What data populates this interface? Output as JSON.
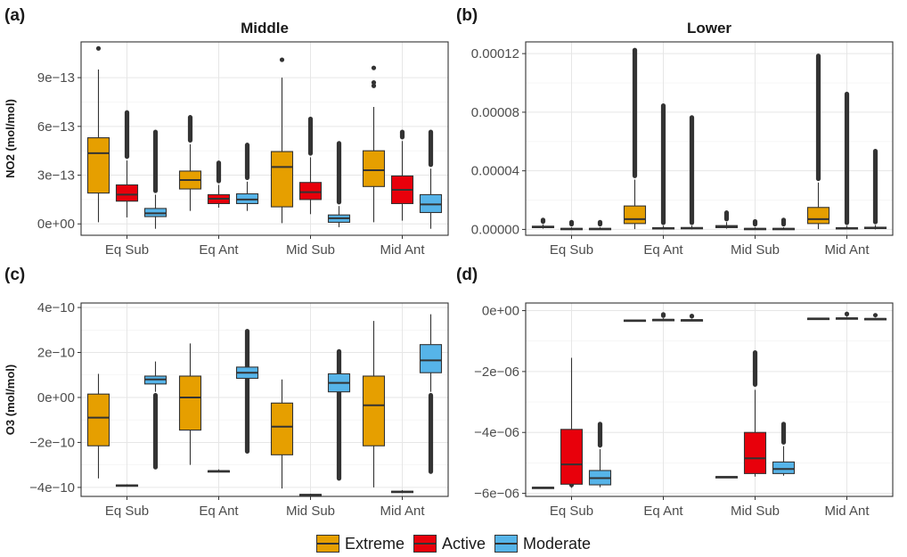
{
  "colors": {
    "Extreme": "#E69F00",
    "Active": "#E8000B",
    "Moderate": "#56B4E9"
  },
  "legend": {
    "items": [
      "Extreme",
      "Active",
      "Moderate"
    ]
  },
  "chart_data": [
    {
      "panel_label": "(a)",
      "title": "Middle",
      "ylabel": "NO2 (mol/mol)",
      "type": "box",
      "categories": [
        "Eq Sub",
        "Eq Ant",
        "Mid Sub",
        "Mid Ant"
      ],
      "ylim": [
        -7e-14,
        1.12e-12
      ],
      "yticks": [
        0,
        3e-13,
        6e-13,
        9e-13
      ],
      "ytick_labels": [
        "0e+00",
        "3e−13",
        "6e−13",
        "9e−13"
      ],
      "series": [
        {
          "name": "Extreme",
          "boxes": [
            {
              "min": 1e-14,
              "q1": 1.9e-13,
              "median": 4.35e-13,
              "q3": 5.3e-13,
              "max": 9.5e-13,
              "outliers": [
                1.08e-12
              ]
            },
            {
              "min": 8e-14,
              "q1": 2.15e-13,
              "median": 2.7e-13,
              "q3": 3.25e-13,
              "max": 4.9e-13,
              "outlier_range": [
                5e-13,
                6.7e-13
              ]
            },
            {
              "min": 5e-15,
              "q1": 1.05e-13,
              "median": 3.5e-13,
              "q3": 4.45e-13,
              "max": 9e-13,
              "outliers": [
                1.01e-12
              ]
            },
            {
              "min": 1e-14,
              "q1": 2.3e-13,
              "median": 3.3e-13,
              "q3": 4.5e-13,
              "max": 7.2e-13,
              "outliers": [
                8.5e-13,
                8.7e-13,
                9.6e-13
              ]
            }
          ]
        },
        {
          "name": "Active",
          "boxes": [
            {
              "min": 4e-14,
              "q1": 1.4e-13,
              "median": 1.8e-13,
              "q3": 2.4e-13,
              "max": 3.9e-13,
              "outlier_range": [
                4e-13,
                7e-13
              ]
            },
            {
              "min": 1e-13,
              "q1": 1.25e-13,
              "median": 1.55e-13,
              "q3": 1.8e-13,
              "max": 2.4e-13,
              "outlier_range": [
                2.5e-13,
                3.9e-13
              ]
            },
            {
              "min": 6e-14,
              "q1": 1.5e-13,
              "median": 1.95e-13,
              "q3": 2.55e-13,
              "max": 4.1e-13,
              "outlier_range": [
                4.2e-13,
                6.6e-13
              ]
            },
            {
              "min": 2e-14,
              "q1": 1.25e-13,
              "median": 2.1e-13,
              "q3": 2.95e-13,
              "max": 5.1e-13,
              "outlier_range": [
                5.2e-13,
                5.8e-13
              ]
            }
          ]
        },
        {
          "name": "Moderate",
          "boxes": [
            {
              "min": -3e-14,
              "q1": 4.5e-14,
              "median": 6.5e-14,
              "q3": 9.5e-14,
              "max": 1.8e-13,
              "outlier_range": [
                1.9e-13,
                5.8e-13
              ]
            },
            {
              "min": 8e-14,
              "q1": 1.25e-13,
              "median": 1.5e-13,
              "q3": 1.85e-13,
              "max": 2.6e-13,
              "outlier_range": [
                2.7e-13,
                5e-13
              ]
            },
            {
              "min": -2e-14,
              "q1": 1e-14,
              "median": 3.5e-14,
              "q3": 5.5e-14,
              "max": 1.1e-13,
              "outlier_range": [
                1.2e-13,
                5.1e-13
              ]
            },
            {
              "min": -3e-14,
              "q1": 7e-14,
              "median": 1.2e-13,
              "q3": 1.8e-13,
              "max": 3.4e-13,
              "outlier_range": [
                3.5e-13,
                5.8e-13
              ]
            }
          ]
        }
      ]
    },
    {
      "panel_label": "(b)",
      "title": "Lower",
      "ylabel": "",
      "type": "box",
      "categories": [
        "Eq Sub",
        "Eq Ant",
        "Mid Sub",
        "Mid Ant"
      ],
      "ylim": [
        -4e-06,
        0.000128
      ],
      "yticks": [
        0,
        4e-05,
        8e-05,
        0.00012
      ],
      "ytick_labels": [
        "0.00000",
        "0.00004",
        "0.00008",
        "0.00012"
      ],
      "series": [
        {
          "name": "Extreme",
          "boxes": [
            {
              "min": 5e-07,
              "q1": 1.2e-06,
              "median": 1.6e-06,
              "q3": 2.2e-06,
              "max": 3.5e-06,
              "outlier_range": [
                3.8e-06,
                8e-06
              ]
            },
            {
              "min": 2e-07,
              "q1": 4e-06,
              "median": 7e-06,
              "q3": 1.6e-05,
              "max": 3.4e-05,
              "outlier_range": [
                3.5e-05,
                0.000124
              ]
            },
            {
              "min": 5e-07,
              "q1": 1.2e-06,
              "median": 1.8e-06,
              "q3": 2.6e-06,
              "max": 5e-06,
              "outlier_range": [
                5.5e-06,
                1.3e-05
              ]
            },
            {
              "min": 2e-07,
              "q1": 4e-06,
              "median": 7e-06,
              "q3": 1.5e-05,
              "max": 3.2e-05,
              "outlier_range": [
                3.3e-05,
                0.00012
              ]
            }
          ]
        },
        {
          "name": "Active",
          "boxes": [
            {
              "min": 0.0,
              "q1": 2e-07,
              "median": 4e-07,
              "q3": 7e-07,
              "max": 1.5e-06,
              "outlier_range": [
                2e-06,
                6.5e-06
              ]
            },
            {
              "min": 0.0,
              "q1": 4e-07,
              "median": 7e-07,
              "q3": 1.2e-06,
              "max": 2.5e-06,
              "outlier_range": [
                3e-06,
                8.6e-05
              ]
            },
            {
              "min": 0.0,
              "q1": 2e-07,
              "median": 4e-07,
              "q3": 7e-07,
              "max": 1.5e-06,
              "outlier_range": [
                2e-06,
                7e-06
              ]
            },
            {
              "min": 0.0,
              "q1": 4e-07,
              "median": 7e-07,
              "q3": 1.2e-06,
              "max": 2.5e-06,
              "outlier_range": [
                3e-06,
                9.4e-05
              ]
            }
          ]
        },
        {
          "name": "Moderate",
          "boxes": [
            {
              "min": 0.0,
              "q1": 2e-07,
              "median": 4e-07,
              "q3": 7e-07,
              "max": 1.5e-06,
              "outlier_range": [
                2e-06,
                6.5e-06
              ]
            },
            {
              "min": 0.0,
              "q1": 5e-07,
              "median": 9e-07,
              "q3": 1.3e-06,
              "max": 2.6e-06,
              "outlier_range": [
                3e-06,
                7.8e-05
              ]
            },
            {
              "min": 0.0,
              "q1": 2e-07,
              "median": 4e-07,
              "q3": 7e-07,
              "max": 1.5e-06,
              "outlier_range": [
                2e-06,
                8e-06
              ]
            },
            {
              "min": 0.0,
              "q1": 6e-07,
              "median": 1e-06,
              "q3": 1.5e-06,
              "max": 3e-06,
              "outlier_range": [
                3.5e-06,
                5.5e-05
              ]
            }
          ]
        }
      ]
    },
    {
      "panel_label": "(c)",
      "title": "",
      "ylabel": "O3 (mol/mol)",
      "type": "box",
      "categories": [
        "Eq Sub",
        "Eq Ant",
        "Mid Sub",
        "Mid Ant"
      ],
      "ylim": [
        -4.4e-10,
        4.2e-10
      ],
      "yticks": [
        -4e-10,
        -2e-10,
        0,
        2e-10,
        4e-10
      ],
      "ytick_labels": [
        "−4e−10",
        "−2e−10",
        "0e+00",
        "2e−10",
        "4e−10"
      ],
      "series": [
        {
          "name": "Extreme",
          "boxes": [
            {
              "min": -3.6e-10,
              "q1": -2.15e-10,
              "median": -9e-11,
              "q3": 1.5e-11,
              "max": 1.05e-10
            },
            {
              "min": -3e-10,
              "q1": -1.45e-10,
              "median": 0.0,
              "q3": 9.5e-11,
              "max": 2.4e-10
            },
            {
              "min": -4.05e-10,
              "q1": -2.55e-10,
              "median": -1.3e-10,
              "q3": -2.5e-11,
              "max": 8e-11
            },
            {
              "min": -4e-10,
              "q1": -2.15e-10,
              "median": -3.5e-11,
              "q3": 9.5e-11,
              "max": 3.4e-10
            }
          ]
        },
        {
          "name": "Active",
          "boxes": [
            {
              "min": -3.97e-10,
              "q1": -3.93e-10,
              "median": -3.91e-10,
              "q3": -3.89e-10,
              "max": -3.86e-10
            },
            {
              "min": -3.3e-10,
              "q1": -3.28e-10,
              "median": -3.27e-10,
              "q3": -3.26e-10,
              "max": -3.2e-10
            },
            {
              "min": -4.38e-10,
              "q1": -4.35e-10,
              "median": -4.33e-10,
              "q3": -4.31e-10,
              "max": -4.28e-10
            },
            {
              "min": -4.25e-10,
              "q1": -4.21e-10,
              "median": -4.19e-10,
              "q3": -4.17e-10,
              "max": -4.12e-10
            }
          ]
        },
        {
          "name": "Moderate",
          "boxes": [
            {
              "min": 2.5e-11,
              "q1": 6e-11,
              "median": 8e-11,
              "q3": 9.5e-11,
              "max": 1.6e-10,
              "outlier_range": [
                -3.2e-10,
                2e-11
              ]
            },
            {
              "min": 6e-11,
              "q1": 8.5e-11,
              "median": 1.1e-10,
              "q3": 1.35e-10,
              "max": 1.8e-10,
              "outlier_range": [
                -2.5e-10,
                3.05e-10
              ]
            },
            {
              "min": 0.0,
              "q1": 2.5e-11,
              "median": 6.5e-11,
              "q3": 1.05e-10,
              "max": 1.6e-10,
              "outlier_range": [
                -3.7e-10,
                2.15e-10
              ]
            },
            {
              "min": 2.5e-11,
              "q1": 1.1e-10,
              "median": 1.65e-10,
              "q3": 2.35e-10,
              "max": 3.7e-10,
              "outlier_range": [
                -3.4e-10,
                2e-11
              ]
            }
          ]
        }
      ]
    },
    {
      "panel_label": "(d)",
      "title": "",
      "ylabel": "",
      "type": "box",
      "categories": [
        "Eq Sub",
        "Eq Ant",
        "Mid Sub",
        "Mid Ant"
      ],
      "ylim": [
        -6.1e-06,
        2.5e-07
      ],
      "yticks": [
        -6e-06,
        -4e-06,
        -2e-06,
        0
      ],
      "ytick_labels": [
        "−6e−06",
        "−4e−06",
        "−2e−06",
        "0e+00"
      ],
      "series": [
        {
          "name": "Extreme",
          "boxes": [
            {
              "min": -5.83e-06,
              "q1": -5.82e-06,
              "median": -5.81e-06,
              "q3": -5.8e-06,
              "max": -5.79e-06
            },
            {
              "min": -3.4e-07,
              "q1": -3.3e-07,
              "median": -3.2e-07,
              "q3": -3.1e-07,
              "max": -3e-07
            },
            {
              "min": -5.48e-06,
              "q1": -5.47e-06,
              "median": -5.46e-06,
              "q3": -5.45e-06,
              "max": -5.44e-06
            },
            {
              "min": -2.8e-07,
              "q1": -2.7e-07,
              "median": -2.6e-07,
              "q3": -2.5e-07,
              "max": -2.4e-07
            }
          ]
        },
        {
          "name": "Active",
          "boxes": [
            {
              "min": -5.82e-06,
              "q1": -5.7e-06,
              "median": -5.05e-06,
              "q3": -3.9e-06,
              "max": -1.55e-06,
              "outlier_range": [
                -5.8e-06,
                -5.15e-06
              ]
            },
            {
              "min": -3.3e-07,
              "q1": -3.1e-07,
              "median": -3e-07,
              "q3": -2.9e-07,
              "max": -2.5e-07,
              "outlier_range": [
                -2.4e-07,
                -5e-08
              ]
            },
            {
              "min": -5.45e-06,
              "q1": -5.35e-06,
              "median": -4.85e-06,
              "q3": -4e-06,
              "max": -2.6e-06,
              "outlier_range": [
                -2.5e-06,
                -1.3e-06
              ]
            },
            {
              "min": -2.7e-07,
              "q1": -2.6e-07,
              "median": -2.5e-07,
              "q3": -2.4e-07,
              "max": -2e-07,
              "outlier_range": [
                -1.9e-07,
                -3e-08
              ]
            }
          ]
        },
        {
          "name": "Moderate",
          "boxes": [
            {
              "min": -5.8e-06,
              "q1": -5.72e-06,
              "median": -5.5e-06,
              "q3": -5.25e-06,
              "max": -4.55e-06,
              "outlier_range": [
                -4.5e-06,
                -3.65e-06
              ]
            },
            {
              "min": -3.4e-07,
              "q1": -3.2e-07,
              "median": -3.1e-07,
              "q3": -3e-07,
              "max": -2.7e-07,
              "outlier_range": [
                -2.6e-07,
                -1e-07
              ]
            },
            {
              "min": -5.42e-06,
              "q1": -5.35e-06,
              "median": -5.2e-06,
              "q3": -4.97e-06,
              "max": -4.45e-06,
              "outlier_range": [
                -4.4e-06,
                -3.65e-06
              ]
            },
            {
              "min": -3e-07,
              "q1": -2.8e-07,
              "median": -2.7e-07,
              "q3": -2.6e-07,
              "max": -2.3e-07,
              "outlier_range": [
                -2.2e-07,
                -8e-08
              ]
            }
          ]
        }
      ]
    }
  ]
}
